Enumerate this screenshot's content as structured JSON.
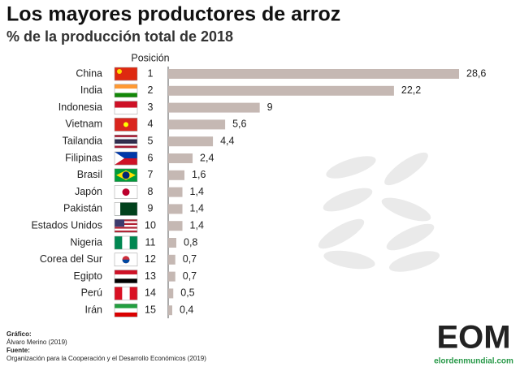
{
  "chart_data": {
    "type": "bar",
    "orientation": "horizontal",
    "title": "Los mayores productores de arroz",
    "subtitle": "% de la producción total de 2018",
    "position_header": "Posición",
    "categories": [
      "China",
      "India",
      "Indonesia",
      "Vietnam",
      "Tailandia",
      "Filipinas",
      "Brasil",
      "Japón",
      "Pakistán",
      "Estados Unidos",
      "Nigeria",
      "Corea del Sur",
      "Egipto",
      "Perú",
      "Irán"
    ],
    "positions": [
      1,
      2,
      3,
      4,
      5,
      6,
      7,
      8,
      9,
      10,
      11,
      12,
      13,
      14,
      15
    ],
    "values": [
      28.6,
      22.2,
      9,
      5.6,
      4.4,
      2.4,
      1.6,
      1.4,
      1.4,
      1.4,
      0.8,
      0.7,
      0.7,
      0.5,
      0.4
    ],
    "value_labels": [
      "28,6",
      "22,2",
      "9",
      "5,6",
      "4,4",
      "2,4",
      "1,6",
      "1,4",
      "1,4",
      "1,4",
      "0,8",
      "0,7",
      "0,7",
      "0,5",
      "0,4"
    ],
    "color": "#c5b8b3"
  },
  "footer": {
    "graphic_label": "Gráfico:",
    "graphic_author": "Álvaro Merino (2019)",
    "source_label": "Fuente:",
    "source": "Organización para la Cooperación y el Desarrollo Económicos (2019)",
    "logo": "EOM",
    "website": "elordenmundial.com"
  }
}
